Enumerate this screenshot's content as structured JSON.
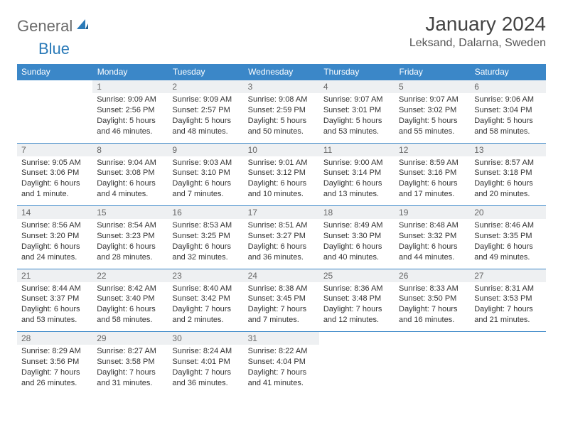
{
  "logo": {
    "general": "General",
    "blue": "Blue"
  },
  "title": "January 2024",
  "location": "Leksand, Dalarna, Sweden",
  "colors": {
    "header_bg": "#3b87c8",
    "header_text": "#ffffff",
    "daynum_bg": "#eef0f2",
    "border": "#3b87c8",
    "logo_gray": "#6b6b6b",
    "logo_blue": "#2a7ab8"
  },
  "daysOfWeek": [
    "Sunday",
    "Monday",
    "Tuesday",
    "Wednesday",
    "Thursday",
    "Friday",
    "Saturday"
  ],
  "weeks": [
    [
      null,
      {
        "n": "1",
        "sr": "Sunrise: 9:09 AM",
        "ss": "Sunset: 2:56 PM",
        "dl": "Daylight: 5 hours and 46 minutes."
      },
      {
        "n": "2",
        "sr": "Sunrise: 9:09 AM",
        "ss": "Sunset: 2:57 PM",
        "dl": "Daylight: 5 hours and 48 minutes."
      },
      {
        "n": "3",
        "sr": "Sunrise: 9:08 AM",
        "ss": "Sunset: 2:59 PM",
        "dl": "Daylight: 5 hours and 50 minutes."
      },
      {
        "n": "4",
        "sr": "Sunrise: 9:07 AM",
        "ss": "Sunset: 3:01 PM",
        "dl": "Daylight: 5 hours and 53 minutes."
      },
      {
        "n": "5",
        "sr": "Sunrise: 9:07 AM",
        "ss": "Sunset: 3:02 PM",
        "dl": "Daylight: 5 hours and 55 minutes."
      },
      {
        "n": "6",
        "sr": "Sunrise: 9:06 AM",
        "ss": "Sunset: 3:04 PM",
        "dl": "Daylight: 5 hours and 58 minutes."
      }
    ],
    [
      {
        "n": "7",
        "sr": "Sunrise: 9:05 AM",
        "ss": "Sunset: 3:06 PM",
        "dl": "Daylight: 6 hours and 1 minute."
      },
      {
        "n": "8",
        "sr": "Sunrise: 9:04 AM",
        "ss": "Sunset: 3:08 PM",
        "dl": "Daylight: 6 hours and 4 minutes."
      },
      {
        "n": "9",
        "sr": "Sunrise: 9:03 AM",
        "ss": "Sunset: 3:10 PM",
        "dl": "Daylight: 6 hours and 7 minutes."
      },
      {
        "n": "10",
        "sr": "Sunrise: 9:01 AM",
        "ss": "Sunset: 3:12 PM",
        "dl": "Daylight: 6 hours and 10 minutes."
      },
      {
        "n": "11",
        "sr": "Sunrise: 9:00 AM",
        "ss": "Sunset: 3:14 PM",
        "dl": "Daylight: 6 hours and 13 minutes."
      },
      {
        "n": "12",
        "sr": "Sunrise: 8:59 AM",
        "ss": "Sunset: 3:16 PM",
        "dl": "Daylight: 6 hours and 17 minutes."
      },
      {
        "n": "13",
        "sr": "Sunrise: 8:57 AM",
        "ss": "Sunset: 3:18 PM",
        "dl": "Daylight: 6 hours and 20 minutes."
      }
    ],
    [
      {
        "n": "14",
        "sr": "Sunrise: 8:56 AM",
        "ss": "Sunset: 3:20 PM",
        "dl": "Daylight: 6 hours and 24 minutes."
      },
      {
        "n": "15",
        "sr": "Sunrise: 8:54 AM",
        "ss": "Sunset: 3:23 PM",
        "dl": "Daylight: 6 hours and 28 minutes."
      },
      {
        "n": "16",
        "sr": "Sunrise: 8:53 AM",
        "ss": "Sunset: 3:25 PM",
        "dl": "Daylight: 6 hours and 32 minutes."
      },
      {
        "n": "17",
        "sr": "Sunrise: 8:51 AM",
        "ss": "Sunset: 3:27 PM",
        "dl": "Daylight: 6 hours and 36 minutes."
      },
      {
        "n": "18",
        "sr": "Sunrise: 8:49 AM",
        "ss": "Sunset: 3:30 PM",
        "dl": "Daylight: 6 hours and 40 minutes."
      },
      {
        "n": "19",
        "sr": "Sunrise: 8:48 AM",
        "ss": "Sunset: 3:32 PM",
        "dl": "Daylight: 6 hours and 44 minutes."
      },
      {
        "n": "20",
        "sr": "Sunrise: 8:46 AM",
        "ss": "Sunset: 3:35 PM",
        "dl": "Daylight: 6 hours and 49 minutes."
      }
    ],
    [
      {
        "n": "21",
        "sr": "Sunrise: 8:44 AM",
        "ss": "Sunset: 3:37 PM",
        "dl": "Daylight: 6 hours and 53 minutes."
      },
      {
        "n": "22",
        "sr": "Sunrise: 8:42 AM",
        "ss": "Sunset: 3:40 PM",
        "dl": "Daylight: 6 hours and 58 minutes."
      },
      {
        "n": "23",
        "sr": "Sunrise: 8:40 AM",
        "ss": "Sunset: 3:42 PM",
        "dl": "Daylight: 7 hours and 2 minutes."
      },
      {
        "n": "24",
        "sr": "Sunrise: 8:38 AM",
        "ss": "Sunset: 3:45 PM",
        "dl": "Daylight: 7 hours and 7 minutes."
      },
      {
        "n": "25",
        "sr": "Sunrise: 8:36 AM",
        "ss": "Sunset: 3:48 PM",
        "dl": "Daylight: 7 hours and 12 minutes."
      },
      {
        "n": "26",
        "sr": "Sunrise: 8:33 AM",
        "ss": "Sunset: 3:50 PM",
        "dl": "Daylight: 7 hours and 16 minutes."
      },
      {
        "n": "27",
        "sr": "Sunrise: 8:31 AM",
        "ss": "Sunset: 3:53 PM",
        "dl": "Daylight: 7 hours and 21 minutes."
      }
    ],
    [
      {
        "n": "28",
        "sr": "Sunrise: 8:29 AM",
        "ss": "Sunset: 3:56 PM",
        "dl": "Daylight: 7 hours and 26 minutes."
      },
      {
        "n": "29",
        "sr": "Sunrise: 8:27 AM",
        "ss": "Sunset: 3:58 PM",
        "dl": "Daylight: 7 hours and 31 minutes."
      },
      {
        "n": "30",
        "sr": "Sunrise: 8:24 AM",
        "ss": "Sunset: 4:01 PM",
        "dl": "Daylight: 7 hours and 36 minutes."
      },
      {
        "n": "31",
        "sr": "Sunrise: 8:22 AM",
        "ss": "Sunset: 4:04 PM",
        "dl": "Daylight: 7 hours and 41 minutes."
      },
      null,
      null,
      null
    ]
  ]
}
